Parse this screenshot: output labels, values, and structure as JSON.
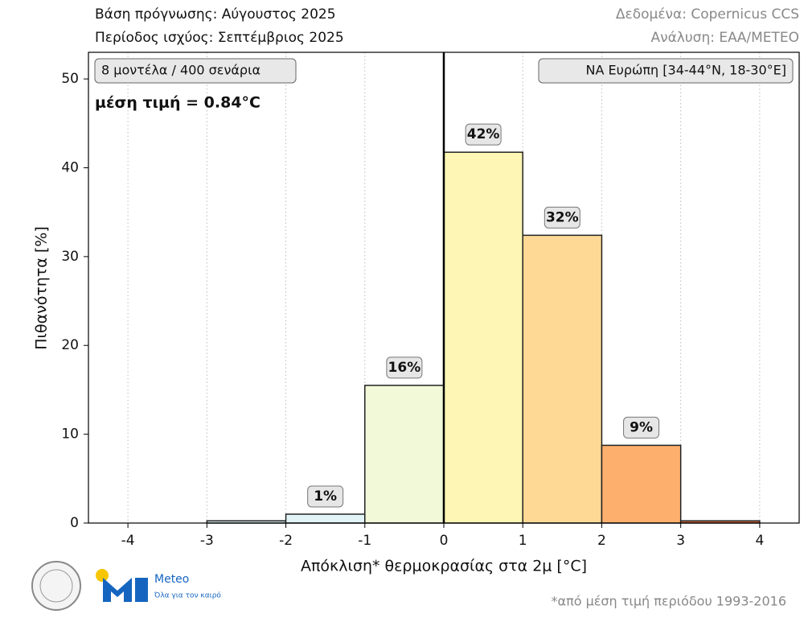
{
  "header": {
    "left": [
      "Βάση πρόγνωσης: Αύγουστος 2025",
      "Περίοδος ισχύος: Σεπτέμβριος 2025"
    ],
    "right": [
      "Δεδομένα: Copernicus CCS",
      "Ανάλυση: ΕΑΑ/METEO"
    ]
  },
  "chart_data": {
    "type": "histogram",
    "ylabel": "Πιθανότητα [%]",
    "xlabel": "Απόκλιση* θερμοκρασίας στα 2μ [°C]",
    "annotations": [
      "8 μοντέλα / 400 σενάρια",
      "μέση τιμή = 0.84°C",
      "ΝΑ Ευρώπη [34-44°N, 18-30°E]"
    ],
    "bins": [
      -4,
      -3,
      -2,
      -1,
      0,
      1,
      2,
      3,
      4
    ],
    "values": [
      0,
      0.25,
      1,
      15.5,
      41.75,
      32.4,
      8.75,
      0.25
    ],
    "value_labels": [
      null,
      null,
      "1%",
      "16%",
      "42%",
      "32%",
      "9%",
      null
    ],
    "colors": [
      "#cfe6f2",
      "#d4e8f3",
      "#e2f4f7",
      "#f1f9d9",
      "#fef6b5",
      "#fdd995",
      "#fdb06d",
      "#d9643a"
    ],
    "xlim": [
      -4.5,
      4.5
    ],
    "ylim": [
      0,
      53
    ],
    "xticks": [
      -4,
      -3,
      -2,
      -1,
      0,
      1,
      2,
      3,
      4
    ],
    "yticks": [
      0,
      10,
      20,
      30,
      40,
      50
    ],
    "grid": "x"
  },
  "footnote": "*από μέση τιμή περιόδου 1993-2016",
  "logo": {
    "name": "Meteo",
    "tagline": "Όλα για τον καιρό"
  }
}
